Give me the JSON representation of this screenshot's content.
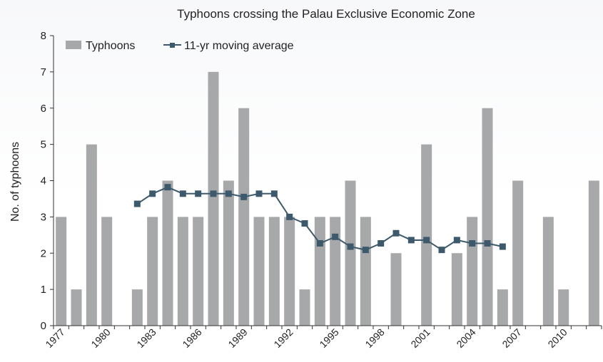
{
  "chart_data": {
    "type": "bar",
    "title": "Typhoons crossing the Palau Exclusive Economic Zone",
    "xlabel": "",
    "ylabel": "No. of typhoons",
    "ylim": [
      0,
      8
    ],
    "yticks": [
      "0",
      "1",
      "2",
      "3",
      "4",
      "5",
      "6",
      "7",
      "8"
    ],
    "grid": false,
    "legend_position": "top-left",
    "x": [
      1977,
      1978,
      1979,
      1980,
      1981,
      1982,
      1983,
      1984,
      1985,
      1986,
      1987,
      1988,
      1989,
      1990,
      1991,
      1992,
      1993,
      1994,
      1995,
      1996,
      1997,
      1998,
      1999,
      2000,
      2001,
      2002,
      2003,
      2004,
      2005,
      2006,
      2007,
      2008,
      2009,
      2010,
      2011,
      2012
    ],
    "xtick_labels": [
      "1977",
      "1980",
      "1983",
      "1986",
      "1989",
      "1992",
      "1995",
      "1998",
      "2001",
      "2004",
      "2007",
      "2010"
    ],
    "series": [
      {
        "name": "Typhoons",
        "type": "bar",
        "color": "#a7a8aa",
        "values": [
          3,
          1,
          5,
          3,
          0,
          1,
          3,
          4,
          3,
          3,
          7,
          4,
          6,
          3,
          3,
          3,
          1,
          3,
          3,
          4,
          3,
          0,
          2,
          0,
          5,
          0,
          2,
          3,
          6,
          1,
          4,
          0,
          3,
          1,
          0,
          4
        ]
      },
      {
        "name": "11-yr moving average",
        "type": "line",
        "color": "#3d5a6c",
        "values": [
          null,
          null,
          null,
          null,
          null,
          3.36,
          3.64,
          3.82,
          3.64,
          3.64,
          3.64,
          3.64,
          3.55,
          3.64,
          3.64,
          3.0,
          2.82,
          2.27,
          2.45,
          2.18,
          2.09,
          2.27,
          2.55,
          2.36,
          2.36,
          2.09,
          2.36,
          2.27,
          2.27,
          2.18,
          null,
          null,
          null,
          null,
          null,
          null
        ]
      }
    ]
  }
}
